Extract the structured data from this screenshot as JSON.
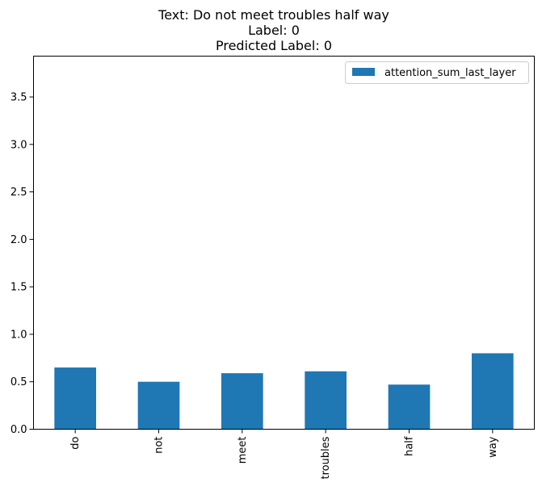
{
  "chart_data": {
    "type": "bar",
    "title_lines": [
      "Text: Do not meet troubles half way",
      "Label: 0",
      "Predicted Label: 0"
    ],
    "categories": [
      "do",
      "not",
      "meet",
      "troubles",
      "half",
      "way"
    ],
    "series": [
      {
        "name": "attention_sum_last_layer",
        "values": [
          0.65,
          0.5,
          0.59,
          0.61,
          0.47,
          0.8
        ],
        "color": "#1f77b4"
      }
    ],
    "xlabel": "",
    "ylabel": "",
    "ylim": [
      0,
      3.93
    ],
    "yticks": [
      0.0,
      0.5,
      1.0,
      1.5,
      2.0,
      2.5,
      3.0,
      3.5
    ],
    "ytick_labels": [
      "0.0",
      "0.5",
      "1.0",
      "1.5",
      "2.0",
      "2.5",
      "3.0",
      "3.5"
    ],
    "grid": false,
    "legend": "top-right"
  }
}
